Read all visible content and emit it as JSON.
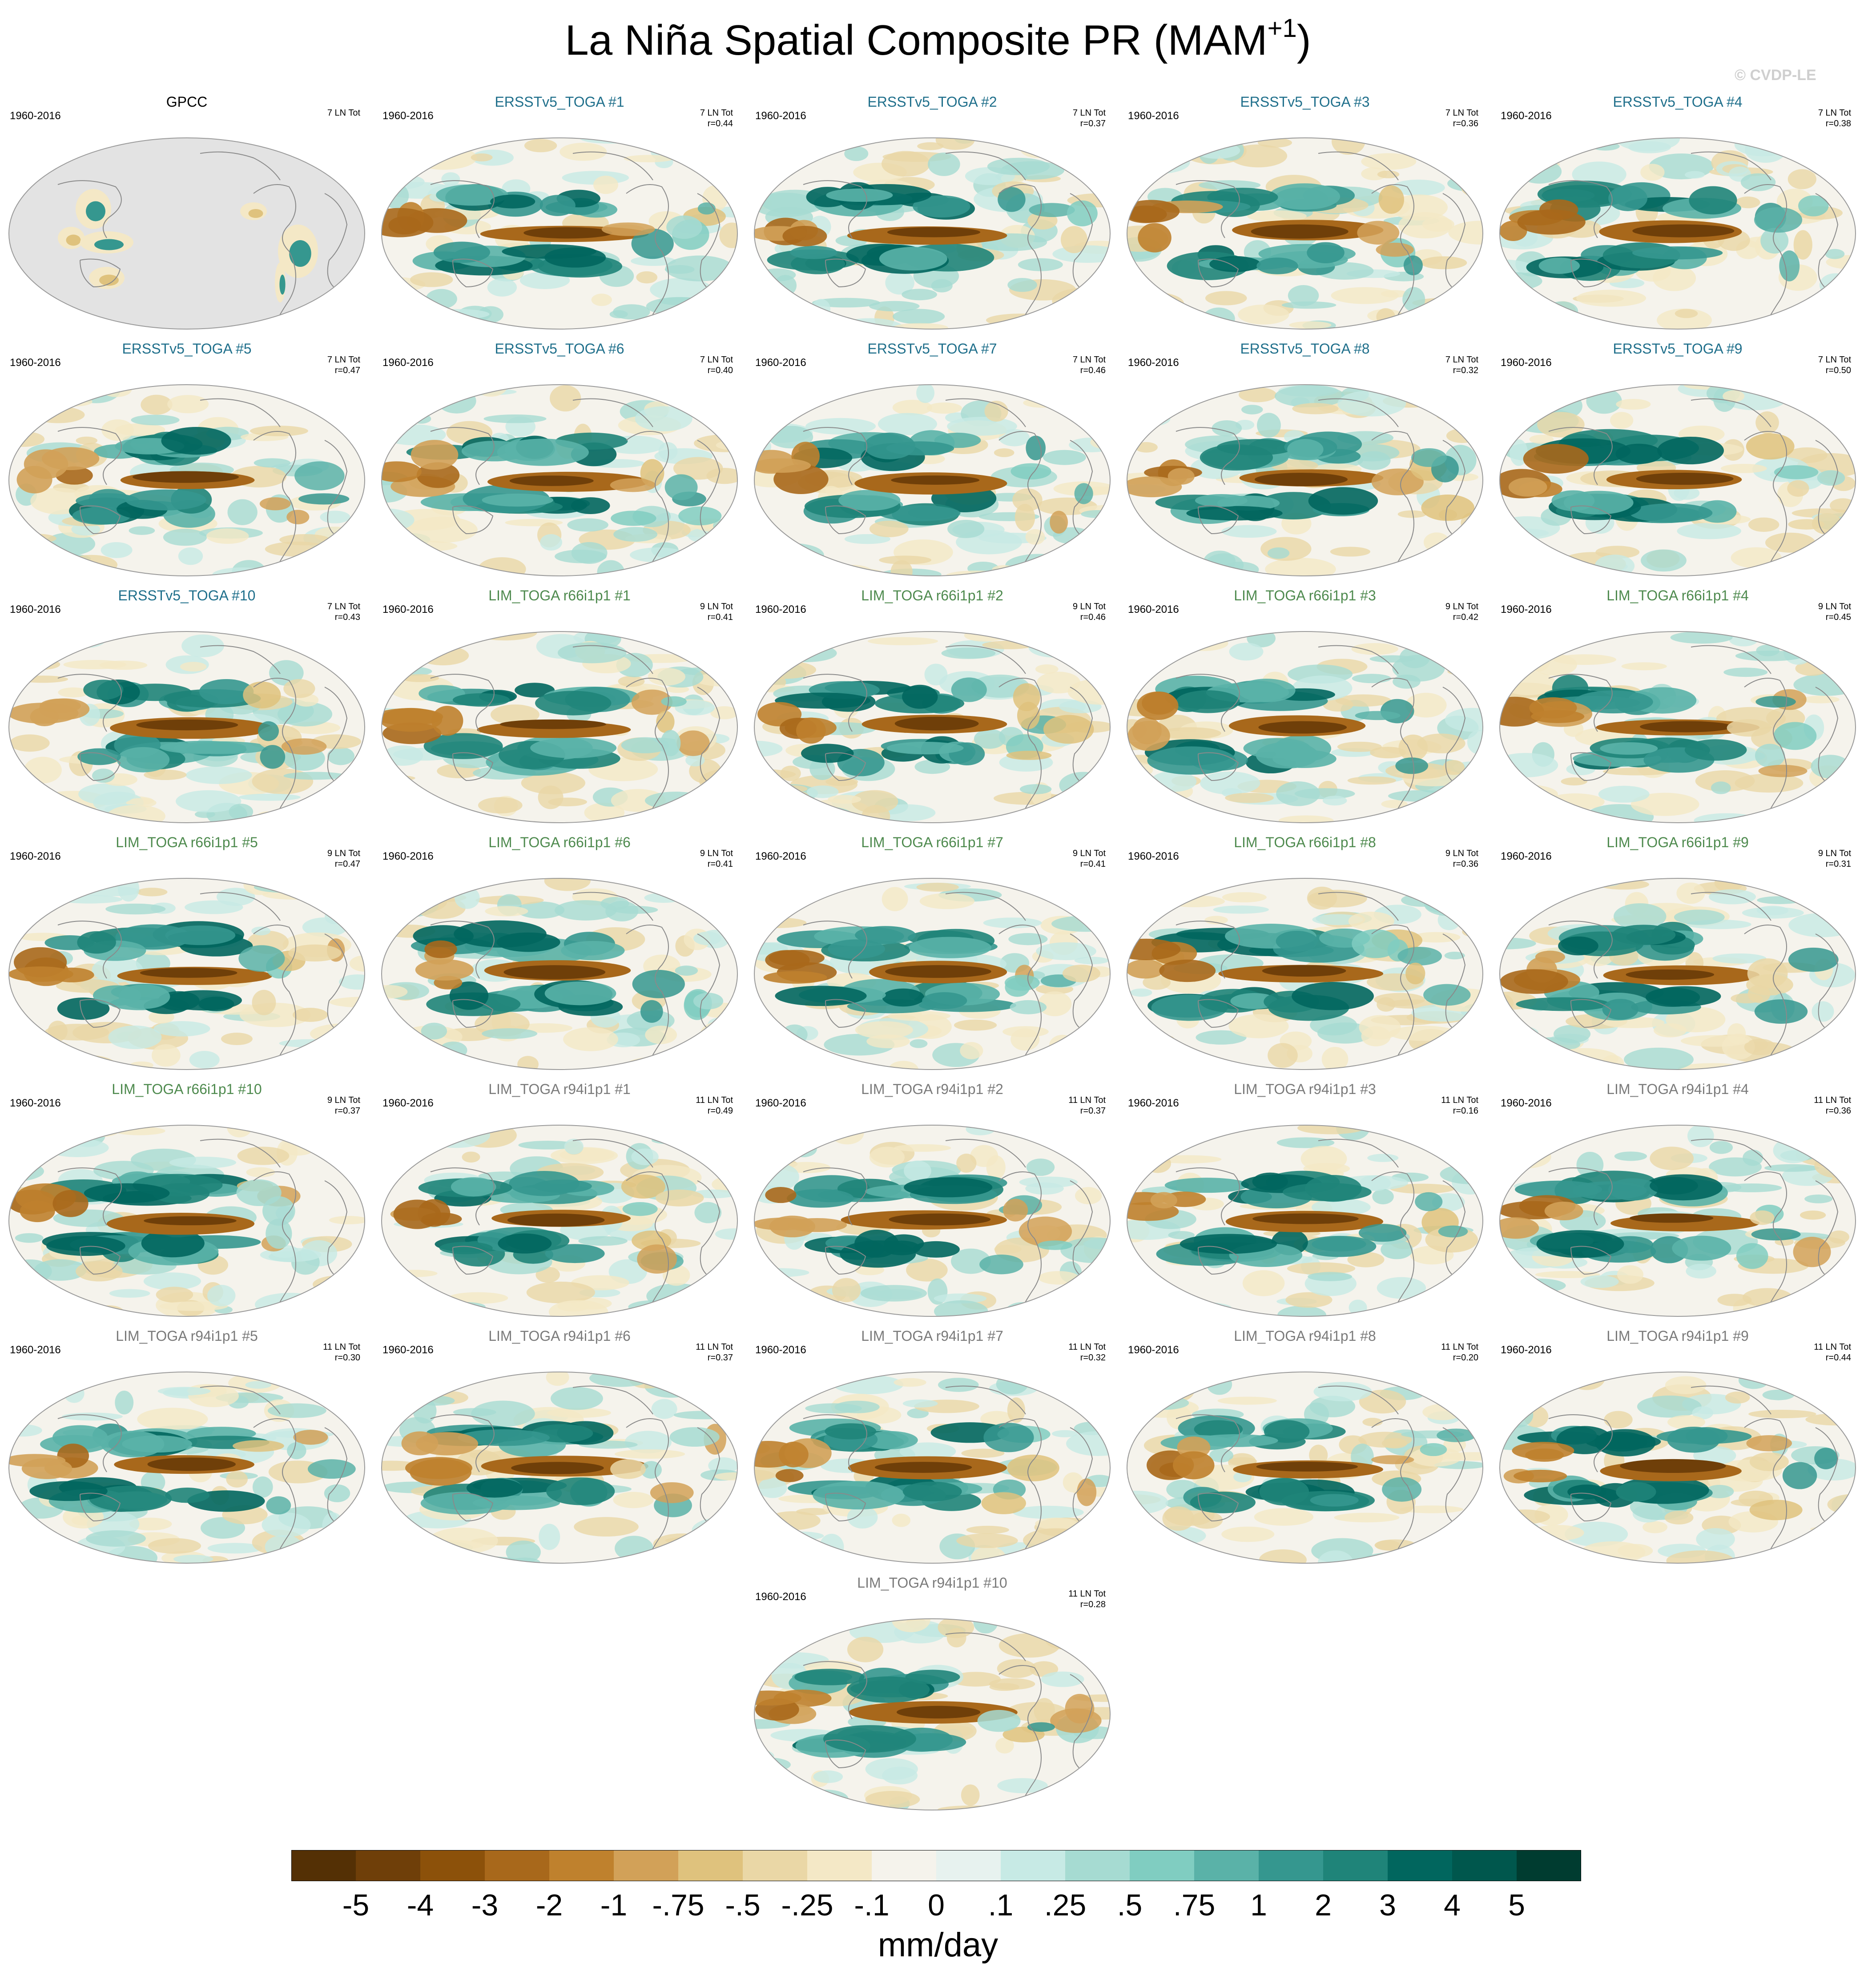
{
  "title": "La Niña Spatial Composite PR (MAM",
  "title_sup": "+1",
  "title_close": ")",
  "watermark": "© CVDP-LE",
  "units": "mm/day",
  "colors": {
    "obs_title": "#000000",
    "ersst_title": "#1f6f8b",
    "lim66_title": "#4e8a4e",
    "lim94_title": "#7a7a7a",
    "land": "#e3e3e3",
    "coast": "#8a8a8a"
  },
  "colorbar": {
    "colors": [
      "#543005",
      "#6f3f09",
      "#8c510a",
      "#a8681b",
      "#bf812d",
      "#d2a158",
      "#dfc27d",
      "#ead7a6",
      "#f4e8c6",
      "#f5f3ec",
      "#e7f2ef",
      "#c7eae5",
      "#a6dbd2",
      "#80cdc1",
      "#5ab2a8",
      "#35978f",
      "#1f8479",
      "#01665e",
      "#00574d",
      "#003c30"
    ],
    "labels": [
      "-5",
      "-4",
      "-3",
      "-2",
      "-1",
      "-.75",
      "-.5",
      "-.25",
      "-.1",
      "0",
      ".1",
      ".25",
      ".5",
      ".75",
      "1",
      "2",
      "3",
      "4",
      "5"
    ]
  },
  "panels": [
    {
      "title": "GPCC",
      "group": "obs",
      "period": "1960-2016",
      "count": "7 LN Tot",
      "r": ""
    },
    {
      "title": "ERSSTv5_TOGA #1",
      "group": "ersst",
      "period": "1960-2016",
      "count": "7 LN Tot",
      "r": "r=0.44"
    },
    {
      "title": "ERSSTv5_TOGA #2",
      "group": "ersst",
      "period": "1960-2016",
      "count": "7 LN Tot",
      "r": "r=0.37"
    },
    {
      "title": "ERSSTv5_TOGA #3",
      "group": "ersst",
      "period": "1960-2016",
      "count": "7 LN Tot",
      "r": "r=0.36"
    },
    {
      "title": "ERSSTv5_TOGA #4",
      "group": "ersst",
      "period": "1960-2016",
      "count": "7 LN Tot",
      "r": "r=0.38"
    },
    {
      "title": "ERSSTv5_TOGA #5",
      "group": "ersst",
      "period": "1960-2016",
      "count": "7 LN Tot",
      "r": "r=0.47"
    },
    {
      "title": "ERSSTv5_TOGA #6",
      "group": "ersst",
      "period": "1960-2016",
      "count": "7 LN Tot",
      "r": "r=0.40"
    },
    {
      "title": "ERSSTv5_TOGA #7",
      "group": "ersst",
      "period": "1960-2016",
      "count": "7 LN Tot",
      "r": "r=0.46"
    },
    {
      "title": "ERSSTv5_TOGA #8",
      "group": "ersst",
      "period": "1960-2016",
      "count": "7 LN Tot",
      "r": "r=0.32"
    },
    {
      "title": "ERSSTv5_TOGA #9",
      "group": "ersst",
      "period": "1960-2016",
      "count": "7 LN Tot",
      "r": "r=0.50"
    },
    {
      "title": "ERSSTv5_TOGA #10",
      "group": "ersst",
      "period": "1960-2016",
      "count": "7 LN Tot",
      "r": "r=0.43"
    },
    {
      "title": "LIM_TOGA r66i1p1 #1",
      "group": "lim66",
      "period": "1960-2016",
      "count": "9 LN Tot",
      "r": "r=0.41"
    },
    {
      "title": "LIM_TOGA r66i1p1 #2",
      "group": "lim66",
      "period": "1960-2016",
      "count": "9 LN Tot",
      "r": "r=0.46"
    },
    {
      "title": "LIM_TOGA r66i1p1 #3",
      "group": "lim66",
      "period": "1960-2016",
      "count": "9 LN Tot",
      "r": "r=0.42"
    },
    {
      "title": "LIM_TOGA r66i1p1 #4",
      "group": "lim66",
      "period": "1960-2016",
      "count": "9 LN Tot",
      "r": "r=0.45"
    },
    {
      "title": "LIM_TOGA r66i1p1 #5",
      "group": "lim66",
      "period": "1960-2016",
      "count": "9 LN Tot",
      "r": "r=0.47"
    },
    {
      "title": "LIM_TOGA r66i1p1 #6",
      "group": "lim66",
      "period": "1960-2016",
      "count": "9 LN Tot",
      "r": "r=0.41"
    },
    {
      "title": "LIM_TOGA r66i1p1 #7",
      "group": "lim66",
      "period": "1960-2016",
      "count": "9 LN Tot",
      "r": "r=0.41"
    },
    {
      "title": "LIM_TOGA r66i1p1 #8",
      "group": "lim66",
      "period": "1960-2016",
      "count": "9 LN Tot",
      "r": "r=0.36"
    },
    {
      "title": "LIM_TOGA r66i1p1 #9",
      "group": "lim66",
      "period": "1960-2016",
      "count": "9 LN Tot",
      "r": "r=0.31"
    },
    {
      "title": "LIM_TOGA r66i1p1 #10",
      "group": "lim66",
      "period": "1960-2016",
      "count": "9 LN Tot",
      "r": "r=0.37"
    },
    {
      "title": "LIM_TOGA r94i1p1 #1",
      "group": "lim94",
      "period": "1960-2016",
      "count": "11 LN Tot",
      "r": "r=0.49"
    },
    {
      "title": "LIM_TOGA r94i1p1 #2",
      "group": "lim94",
      "period": "1960-2016",
      "count": "11 LN Tot",
      "r": "r=0.37"
    },
    {
      "title": "LIM_TOGA r94i1p1 #3",
      "group": "lim94",
      "period": "1960-2016",
      "count": "11 LN Tot",
      "r": "r=0.16"
    },
    {
      "title": "LIM_TOGA r94i1p1 #4",
      "group": "lim94",
      "period": "1960-2016",
      "count": "11 LN Tot",
      "r": "r=0.36"
    },
    {
      "title": "LIM_TOGA r94i1p1 #5",
      "group": "lim94",
      "period": "1960-2016",
      "count": "11 LN Tot",
      "r": "r=0.30"
    },
    {
      "title": "LIM_TOGA r94i1p1 #6",
      "group": "lim94",
      "period": "1960-2016",
      "count": "11 LN Tot",
      "r": "r=0.37"
    },
    {
      "title": "LIM_TOGA r94i1p1 #7",
      "group": "lim94",
      "period": "1960-2016",
      "count": "11 LN Tot",
      "r": "r=0.32"
    },
    {
      "title": "LIM_TOGA r94i1p1 #8",
      "group": "lim94",
      "period": "1960-2016",
      "count": "11 LN Tot",
      "r": "r=0.20"
    },
    {
      "title": "LIM_TOGA r94i1p1 #9",
      "group": "lim94",
      "period": "1960-2016",
      "count": "11 LN Tot",
      "r": "r=0.44"
    },
    {
      "title": "LIM_TOGA r94i1p1 #10",
      "group": "lim94",
      "period": "1960-2016",
      "count": "11 LN Tot",
      "r": "r=0.28"
    }
  ]
}
